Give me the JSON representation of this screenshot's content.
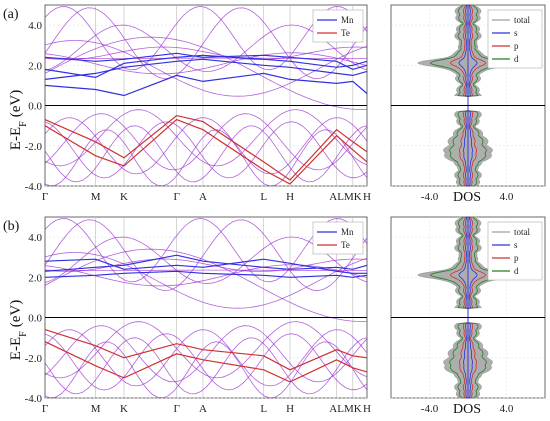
{
  "chart_data": [
    {
      "type": "line",
      "panel_label": "(a)",
      "ylabel": "E-E_F (eV)",
      "ylabel_main": "E-E",
      "ylabel_sub": "F",
      "ylabel_unit": "(eV)",
      "ylim": [
        -4.0,
        5.0
      ],
      "yticks": [
        "4.0",
        "2.0",
        "0.0",
        "-2.0",
        "-4.0"
      ],
      "ytick_values": [
        4.0,
        2.0,
        0.0,
        -2.0,
        -4.0
      ],
      "kpoints": [
        "Γ",
        "M",
        "K",
        "Γ",
        "A",
        "L",
        "H",
        "AL",
        "MK",
        "H"
      ],
      "kpoint_positions": [
        0,
        0.25,
        0.39,
        0.65,
        0.78,
        1.08,
        1.21,
        1.44,
        1.52,
        1.59
      ],
      "legend": [
        "Mn",
        "Te"
      ],
      "colors": {
        "Mn": "#3030e0",
        "Te": "#d03030",
        "mixed": "#9a2fd0",
        "fermi": "#000000"
      },
      "series": [
        {
          "name": "Mn",
          "x": [
            0,
            0.25,
            0.39,
            0.65,
            0.78,
            1.08,
            1.21,
            1.44,
            1.52,
            1.59
          ],
          "values": [
            1.3,
            1.6,
            1.9,
            2.2,
            2.3,
            2.0,
            1.9,
            1.6,
            1.5,
            1.7
          ]
        },
        {
          "name": "Mn",
          "x": [
            0,
            0.25,
            0.39,
            0.65,
            0.78,
            1.08,
            1.21,
            1.44,
            1.52,
            1.59
          ],
          "values": [
            1.8,
            1.4,
            2.1,
            2.4,
            2.5,
            2.3,
            2.2,
            1.9,
            2.0,
            2.2
          ]
        },
        {
          "name": "Mn",
          "x": [
            0,
            0.25,
            0.39,
            0.65,
            0.78,
            1.08,
            1.21,
            1.44,
            1.52,
            1.59
          ],
          "values": [
            2.4,
            2.2,
            2.3,
            2.6,
            2.4,
            2.5,
            2.4,
            2.2,
            1.8,
            2.0
          ]
        },
        {
          "name": "Mn",
          "x": [
            0,
            0.25,
            0.39,
            0.65,
            0.78,
            1.08,
            1.21,
            1.44,
            1.52,
            1.59
          ],
          "values": [
            1.0,
            0.8,
            0.5,
            1.5,
            1.2,
            1.6,
            1.3,
            1.1,
            1.2,
            0.6
          ]
        },
        {
          "name": "Te",
          "x": [
            0,
            0.25,
            0.39,
            0.65,
            0.78,
            1.08,
            1.21,
            1.44,
            1.52,
            1.59
          ],
          "values": [
            -0.7,
            -1.8,
            -2.6,
            -0.5,
            -0.8,
            -2.8,
            -3.7,
            -1.2,
            -1.8,
            -2.3
          ]
        },
        {
          "name": "Te",
          "x": [
            0,
            0.25,
            0.39,
            0.65,
            0.78,
            1.08,
            1.21,
            1.44,
            1.52,
            1.59
          ],
          "values": [
            -1.0,
            -2.5,
            -3.0,
            -0.7,
            -1.2,
            -3.2,
            -3.9,
            -1.5,
            -2.2,
            -2.8
          ]
        }
      ]
    },
    {
      "type": "area",
      "xlabel": "DOS",
      "xticks": [
        "-4.0",
        "4.0"
      ],
      "xtick_values": [
        -4.0,
        4.0
      ],
      "xlim": [
        -8.0,
        8.0
      ],
      "ylim": [
        -4.0,
        5.0
      ],
      "legend": [
        "total",
        "s",
        "p",
        "d"
      ],
      "colors": {
        "total": "#a0a0a0",
        "s": "#3030e0",
        "p": "#d03030",
        "d": "#208020"
      }
    },
    {
      "type": "line",
      "panel_label": "(b)",
      "ylabel": "E-E_F (eV)",
      "ylabel_main": "E-E",
      "ylabel_sub": "F",
      "ylabel_unit": "(eV)",
      "ylim": [
        -4.0,
        5.0
      ],
      "yticks": [
        "4.0",
        "2.0",
        "0.0",
        "-2.0",
        "-4.0"
      ],
      "ytick_values": [
        4.0,
        2.0,
        0.0,
        -2.0,
        -4.0
      ],
      "kpoints": [
        "Γ",
        "M",
        "K",
        "Γ",
        "A",
        "L",
        "H",
        "AL",
        "MK",
        "H"
      ],
      "kpoint_positions": [
        0,
        0.25,
        0.39,
        0.65,
        0.78,
        1.08,
        1.21,
        1.44,
        1.52,
        1.59
      ],
      "legend": [
        "Mn",
        "Te"
      ],
      "colors": {
        "Mn": "#3030e0",
        "Te": "#d03030",
        "mixed": "#9a2fd0",
        "fermi": "#000000"
      },
      "series": [
        {
          "name": "Mn",
          "x": [
            0,
            0.25,
            0.39,
            0.65,
            0.78,
            1.08,
            1.21,
            1.44,
            1.52,
            1.59
          ],
          "values": [
            2.0,
            2.1,
            2.2,
            2.3,
            2.2,
            2.1,
            2.0,
            2.1,
            2.0,
            2.1
          ]
        },
        {
          "name": "Mn",
          "x": [
            0,
            0.25,
            0.39,
            0.65,
            0.78,
            1.08,
            1.21,
            1.44,
            1.52,
            1.59
          ],
          "values": [
            2.3,
            2.5,
            2.6,
            3.1,
            2.8,
            2.5,
            2.4,
            2.5,
            2.4,
            2.6
          ]
        },
        {
          "name": "Mn",
          "x": [
            0,
            0.25,
            0.39,
            0.65,
            0.78,
            1.08,
            1.21,
            1.44,
            1.52,
            1.59
          ],
          "values": [
            2.8,
            2.9,
            2.4,
            2.6,
            2.5,
            2.9,
            2.7,
            2.3,
            2.2,
            2.2
          ]
        },
        {
          "name": "Te",
          "x": [
            0,
            0.25,
            0.39,
            0.65,
            0.78,
            1.08,
            1.21,
            1.44,
            1.52,
            1.59
          ],
          "values": [
            -0.6,
            -1.4,
            -2.0,
            -1.3,
            -1.6,
            -1.9,
            -2.6,
            -1.6,
            -1.9,
            -2.0
          ]
        },
        {
          "name": "Te",
          "x": [
            0,
            0.25,
            0.39,
            0.65,
            0.78,
            1.08,
            1.21,
            1.44,
            1.52,
            1.59
          ],
          "values": [
            -1.2,
            -2.4,
            -3.0,
            -1.8,
            -2.1,
            -2.6,
            -3.2,
            -2.1,
            -2.5,
            -2.7
          ]
        }
      ]
    },
    {
      "type": "area",
      "xlabel": "DOS",
      "xticks": [
        "-4.0",
        "4.0"
      ],
      "xtick_values": [
        -4.0,
        4.0
      ],
      "xlim": [
        -8.0,
        8.0
      ],
      "ylim": [
        -4.0,
        5.0
      ],
      "legend": [
        "total",
        "s",
        "p",
        "d"
      ],
      "colors": {
        "total": "#a0a0a0",
        "s": "#3030e0",
        "p": "#d03030",
        "d": "#208020"
      }
    }
  ]
}
